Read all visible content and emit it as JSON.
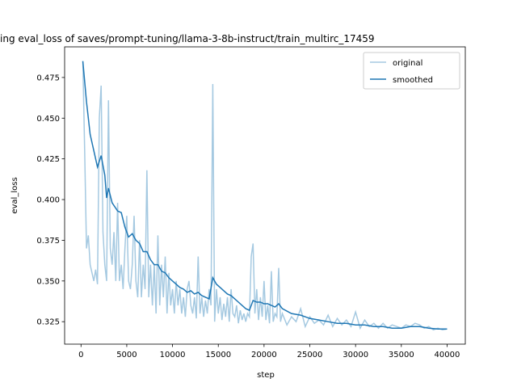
{
  "chart_data": {
    "type": "line",
    "title": "ing eval_loss of saves/prompt-tuning/llama-3-8b-instruct/train_multirc_17459",
    "xlabel": "step",
    "ylabel": "eval_loss",
    "xlim": [
      -1790,
      41990
    ],
    "ylim": [
      0.3112,
      0.4938
    ],
    "xticks": [
      0,
      5000,
      10000,
      15000,
      20000,
      25000,
      30000,
      35000,
      40000
    ],
    "yticks": [
      {
        "value": 0.325,
        "label": "0.325"
      },
      {
        "value": 0.35,
        "label": "0.350"
      },
      {
        "value": 0.375,
        "label": "0.375"
      },
      {
        "value": 0.4,
        "label": "0.400"
      },
      {
        "value": 0.425,
        "label": "0.425"
      },
      {
        "value": 0.45,
        "label": "0.450"
      },
      {
        "value": 0.475,
        "label": "0.475"
      }
    ],
    "legend": "upper right",
    "series": [
      {
        "name": "original",
        "color": "#1f77b4",
        "alpha": 0.4,
        "x": [
          200,
          400,
          600,
          800,
          1000,
          1200,
          1400,
          1600,
          1800,
          2000,
          2200,
          2400,
          2600,
          2800,
          3000,
          3200,
          3400,
          3600,
          3800,
          4000,
          4200,
          4400,
          4600,
          4800,
          5000,
          5200,
          5400,
          5600,
          5800,
          6000,
          6200,
          6400,
          6600,
          6800,
          7000,
          7200,
          7400,
          7600,
          7800,
          8000,
          8200,
          8400,
          8600,
          8800,
          9000,
          9200,
          9400,
          9600,
          9800,
          10000,
          10200,
          10400,
          10600,
          10800,
          11000,
          11200,
          11400,
          11600,
          11800,
          12000,
          12200,
          12400,
          12600,
          12800,
          13000,
          13200,
          13400,
          13600,
          13800,
          14000,
          14200,
          14400,
          14600,
          14800,
          15000,
          15200,
          15400,
          15600,
          15800,
          16000,
          16200,
          16400,
          16600,
          16800,
          17000,
          17200,
          17400,
          17600,
          17800,
          18000,
          18200,
          18400,
          18600,
          18800,
          19000,
          19200,
          19400,
          19600,
          19800,
          20000,
          20200,
          20400,
          20600,
          20800,
          21000,
          21200,
          21400,
          21600,
          21800,
          22000,
          22500,
          23000,
          23500,
          24000,
          24500,
          25000,
          25500,
          26000,
          26500,
          27000,
          27500,
          28000,
          28500,
          29000,
          29500,
          30000,
          30500,
          31000,
          31500,
          32000,
          32500,
          33000,
          33500,
          34000,
          34500,
          35000,
          35500,
          36000,
          36500,
          37000,
          37500,
          38000,
          38500,
          39000,
          39500,
          40000
        ],
        "values": [
          0.485,
          0.43,
          0.37,
          0.378,
          0.36,
          0.355,
          0.35,
          0.357,
          0.348,
          0.45,
          0.47,
          0.38,
          0.36,
          0.35,
          0.461,
          0.37,
          0.36,
          0.38,
          0.35,
          0.398,
          0.35,
          0.36,
          0.345,
          0.37,
          0.39,
          0.35,
          0.345,
          0.36,
          0.39,
          0.35,
          0.34,
          0.375,
          0.34,
          0.36,
          0.345,
          0.418,
          0.34,
          0.36,
          0.335,
          0.36,
          0.33,
          0.378,
          0.335,
          0.36,
          0.34,
          0.365,
          0.33,
          0.355,
          0.335,
          0.345,
          0.33,
          0.35,
          0.335,
          0.345,
          0.33,
          0.34,
          0.328,
          0.345,
          0.35,
          0.335,
          0.33,
          0.34,
          0.327,
          0.365,
          0.33,
          0.34,
          0.328,
          0.338,
          0.33,
          0.345,
          0.335,
          0.471,
          0.325,
          0.345,
          0.33,
          0.34,
          0.326,
          0.336,
          0.328,
          0.34,
          0.325,
          0.345,
          0.33,
          0.328,
          0.335,
          0.324,
          0.332,
          0.326,
          0.33,
          0.325,
          0.33,
          0.328,
          0.365,
          0.373,
          0.33,
          0.345,
          0.326,
          0.34,
          0.328,
          0.35,
          0.326,
          0.335,
          0.324,
          0.356,
          0.325,
          0.33,
          0.328,
          0.358,
          0.325,
          0.33,
          0.323,
          0.328,
          0.325,
          0.333,
          0.322,
          0.328,
          0.324,
          0.326,
          0.323,
          0.329,
          0.322,
          0.327,
          0.323,
          0.326,
          0.322,
          0.331,
          0.321,
          0.326,
          0.322,
          0.324,
          0.321,
          0.324,
          0.321,
          0.323,
          0.322,
          0.321,
          0.323,
          0.322,
          0.324,
          0.323,
          0.321,
          0.322,
          0.32,
          0.321,
          0.32,
          0.3205
        ]
      },
      {
        "name": "smoothed",
        "color": "#1f77b4",
        "alpha": 1,
        "x": [
          200,
          600,
          1000,
          1400,
          1800,
          2200,
          2600,
          2800,
          3000,
          3400,
          4000,
          4400,
          4800,
          5200,
          5600,
          6000,
          6400,
          6800,
          7200,
          7600,
          8000,
          8400,
          8800,
          9200,
          9600,
          10000,
          10400,
          10800,
          11200,
          11600,
          12000,
          12400,
          12800,
          13200,
          13600,
          14000,
          14400,
          14800,
          15200,
          15600,
          16000,
          16400,
          16800,
          17200,
          17600,
          18000,
          18400,
          18800,
          19200,
          19600,
          20000,
          20400,
          20800,
          21200,
          21600,
          22000,
          23000,
          24000,
          25000,
          26000,
          27000,
          28000,
          29000,
          30000,
          31000,
          32000,
          33000,
          34000,
          35000,
          36000,
          37000,
          38000,
          39000,
          40000
        ],
        "values": [
          0.485,
          0.46,
          0.44,
          0.43,
          0.42,
          0.427,
          0.415,
          0.401,
          0.407,
          0.398,
          0.393,
          0.392,
          0.383,
          0.377,
          0.379,
          0.375,
          0.373,
          0.368,
          0.368,
          0.363,
          0.36,
          0.36,
          0.356,
          0.355,
          0.352,
          0.35,
          0.348,
          0.346,
          0.345,
          0.343,
          0.344,
          0.342,
          0.343,
          0.341,
          0.34,
          0.339,
          0.352,
          0.348,
          0.346,
          0.344,
          0.342,
          0.341,
          0.339,
          0.337,
          0.335,
          0.333,
          0.332,
          0.338,
          0.337,
          0.337,
          0.336,
          0.336,
          0.335,
          0.334,
          0.336,
          0.333,
          0.33,
          0.329,
          0.327,
          0.326,
          0.325,
          0.324,
          0.324,
          0.323,
          0.323,
          0.322,
          0.322,
          0.321,
          0.321,
          0.322,
          0.322,
          0.321,
          0.3205,
          0.3205
        ]
      }
    ]
  }
}
